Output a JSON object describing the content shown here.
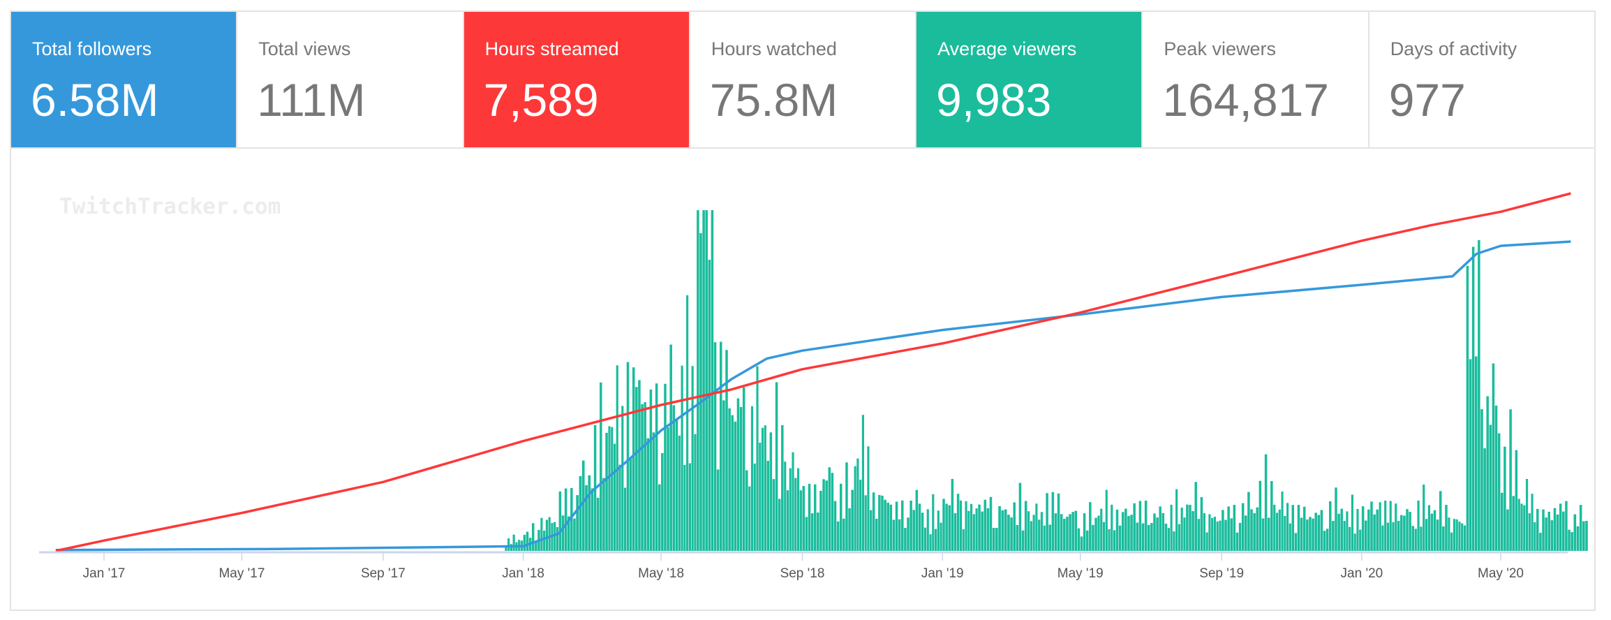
{
  "stats": [
    {
      "label": "Total followers",
      "value": "6.58M",
      "color": "#3598db"
    },
    {
      "label": "Total views",
      "value": "111M"
    },
    {
      "label": "Hours streamed",
      "value": "7,589",
      "color": "#fd3839"
    },
    {
      "label": "Hours watched",
      "value": "75.8M"
    },
    {
      "label": "Average viewers",
      "value": "9,983",
      "color": "#1abc9c"
    },
    {
      "label": "Peak viewers",
      "value": "164,817"
    },
    {
      "label": "Days of activity",
      "value": "977"
    }
  ],
  "watermark": "TwitchTracker.com",
  "chart_data": {
    "type": "line+bar",
    "title": "",
    "xlabel": "",
    "ylabel": "",
    "x_ticks": [
      "Jan '17",
      "May '17",
      "Sep '17",
      "Jan '18",
      "May '18",
      "Sep '18",
      "Jan '19",
      "May '19",
      "Sep '19",
      "Jan '20",
      "May '20"
    ],
    "x_tick_dates": [
      "2017-01-01",
      "2017-05-01",
      "2017-09-01",
      "2018-01-01",
      "2018-05-01",
      "2018-09-01",
      "2019-01-01",
      "2019-05-01",
      "2019-09-01",
      "2020-01-01",
      "2020-05-01"
    ],
    "grid": false,
    "legend": "none",
    "series": [
      {
        "type": "line",
        "color": "#fd3839",
        "unit": "M views",
        "x": [
          "2016-11-20",
          "2017-01-01",
          "2017-05-01",
          "2017-09-01",
          "2018-01-01",
          "2018-05-01",
          "2018-07-01",
          "2018-09-01",
          "2019-01-01",
          "2019-05-01",
          "2019-09-01",
          "2020-01-01",
          "2020-03-01",
          "2020-05-01",
          "2020-07-01"
        ],
        "y": [
          0,
          3.2,
          11.8,
          21.4,
          34.1,
          45.3,
          50.1,
          56.4,
          64.4,
          74.0,
          85.1,
          96.3,
          101.1,
          105.3,
          111
        ]
      },
      {
        "type": "line",
        "color": "#3598db",
        "unit": "M followers",
        "x": [
          "2016-11-20",
          "2017-06-01",
          "2018-01-01",
          "2018-02-01",
          "2018-03-01",
          "2018-04-01",
          "2018-05-01",
          "2018-06-01",
          "2018-07-01",
          "2018-08-01",
          "2018-09-01",
          "2019-01-01",
          "2019-05-01",
          "2019-09-01",
          "2020-01-01",
          "2020-03-20",
          "2020-04-10",
          "2020-05-01",
          "2020-07-01"
        ],
        "y": [
          0.02,
          0.04,
          0.1,
          0.37,
          1.25,
          1.9,
          2.56,
          3.1,
          3.65,
          4.09,
          4.26,
          4.7,
          5.03,
          5.4,
          5.66,
          5.84,
          6.32,
          6.49,
          6.58
        ]
      },
      {
        "type": "bar",
        "color": "#1abc9c",
        "unit": "relative (peak = 100)",
        "x": [
          "2017-12-16",
          "2018-01-01",
          "2018-01-16",
          "2018-02-01",
          "2018-02-16",
          "2018-03-01",
          "2018-03-16",
          "2018-04-01",
          "2018-04-16",
          "2018-05-01",
          "2018-05-16",
          "2018-06-01",
          "2018-06-16",
          "2018-07-01",
          "2018-07-16",
          "2018-08-01",
          "2018-08-16",
          "2018-09-01",
          "2018-09-16",
          "2018-10-01",
          "2018-10-16",
          "2018-11-01",
          "2018-11-16",
          "2018-12-01",
          "2018-12-16",
          "2019-01-01",
          "2019-01-16",
          "2019-02-01",
          "2019-02-16",
          "2019-03-01",
          "2019-03-16",
          "2019-04-01",
          "2019-04-16",
          "2019-05-01",
          "2019-05-16",
          "2019-06-01",
          "2019-06-16",
          "2019-07-01",
          "2019-07-16",
          "2019-08-01",
          "2019-08-16",
          "2019-09-01",
          "2019-09-16",
          "2019-10-01",
          "2019-10-16",
          "2019-11-01",
          "2019-11-16",
          "2019-12-01",
          "2019-12-16",
          "2020-01-01",
          "2020-01-16",
          "2020-02-01",
          "2020-02-16",
          "2020-03-01",
          "2020-03-16",
          "2020-04-01",
          "2020-04-16",
          "2020-05-01",
          "2020-05-16",
          "2020-06-01",
          "2020-06-16",
          "2020-07-01"
        ],
        "y": [
          3,
          5,
          8,
          15,
          20,
          30,
          35,
          45,
          40,
          42,
          45,
          100,
          50,
          40,
          35,
          30,
          22,
          16,
          20,
          16,
          25,
          14,
          12,
          13,
          10,
          14,
          12,
          13,
          11,
          12,
          10,
          14,
          10,
          9,
          11,
          10,
          12,
          10,
          11,
          13,
          9,
          11,
          12,
          17,
          12,
          11,
          10,
          12,
          10,
          11,
          12,
          10,
          12,
          11,
          8,
          74,
          40,
          25,
          14,
          10,
          12,
          9
        ]
      }
    ]
  }
}
